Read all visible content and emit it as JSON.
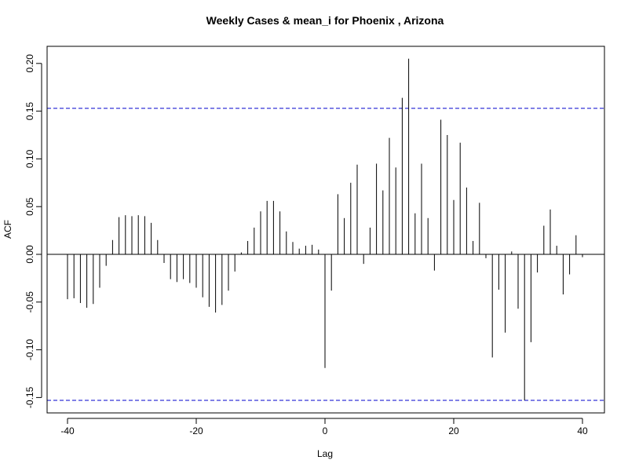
{
  "chart_data": {
    "type": "bar",
    "title": "Weekly Cases & mean_i for Phoenix , Arizona",
    "xlabel": "Lag",
    "ylabel": "ACF",
    "xlim": [
      -40,
      40
    ],
    "ylim": [
      -0.15,
      0.2
    ],
    "xticks": [
      {
        "value": -40,
        "label": "-40"
      },
      {
        "value": -20,
        "label": "-20"
      },
      {
        "value": 0,
        "label": "0"
      },
      {
        "value": 20,
        "label": "20"
      },
      {
        "value": 40,
        "label": "40"
      }
    ],
    "yticks": [
      {
        "value": -0.15,
        "label": "-0.15"
      },
      {
        "value": -0.1,
        "label": "-0.10"
      },
      {
        "value": -0.05,
        "label": "-0.05"
      },
      {
        "value": 0.0,
        "label": "0.00"
      },
      {
        "value": 0.05,
        "label": "0.05"
      },
      {
        "value": 0.1,
        "label": "0.10"
      },
      {
        "value": 0.15,
        "label": "0.15"
      },
      {
        "value": 0.2,
        "label": "0.20"
      }
    ],
    "confidence_bounds": [
      0.153,
      -0.153
    ],
    "colors": {
      "bars": "#000000",
      "bounds": "#0000CC",
      "zero_line": "#000000"
    },
    "grid": false,
    "lags": [
      -40,
      -39,
      -38,
      -37,
      -36,
      -35,
      -34,
      -33,
      -32,
      -31,
      -30,
      -29,
      -28,
      -27,
      -26,
      -25,
      -24,
      -23,
      -22,
      -21,
      -20,
      -19,
      -18,
      -17,
      -16,
      -15,
      -14,
      -13,
      -12,
      -11,
      -10,
      -9,
      -8,
      -7,
      -6,
      -5,
      -4,
      -3,
      -2,
      -1,
      0,
      1,
      2,
      3,
      4,
      5,
      6,
      7,
      8,
      9,
      10,
      11,
      12,
      13,
      14,
      15,
      16,
      17,
      18,
      19,
      20,
      21,
      22,
      23,
      24,
      25,
      26,
      27,
      28,
      29,
      30,
      31,
      32,
      33,
      34,
      35,
      36,
      37,
      38,
      39,
      40
    ],
    "values": [
      -0.047,
      -0.046,
      -0.051,
      -0.056,
      -0.052,
      -0.035,
      -0.012,
      0.015,
      0.039,
      0.041,
      0.04,
      0.041,
      0.04,
      0.033,
      0.015,
      -0.009,
      -0.026,
      -0.029,
      -0.026,
      -0.03,
      -0.035,
      -0.045,
      -0.055,
      -0.061,
      -0.053,
      -0.038,
      -0.018,
      0.002,
      0.014,
      0.028,
      0.045,
      0.056,
      0.056,
      0.045,
      0.024,
      0.013,
      0.006,
      0.009,
      0.01,
      0.005,
      -0.119,
      -0.038,
      0.063,
      0.038,
      0.075,
      0.094,
      -0.01,
      0.028,
      0.095,
      0.067,
      0.122,
      0.091,
      0.164,
      0.205,
      0.043,
      0.095,
      0.038,
      -0.017,
      0.141,
      0.125,
      0.057,
      0.117,
      0.07,
      0.014,
      0.054,
      -0.004,
      -0.108,
      -0.037,
      -0.082,
      0.003,
      -0.057,
      -0.153,
      -0.092,
      -0.019,
      0.03,
      0.047,
      0.009,
      -0.042,
      -0.021,
      0.02,
      -0.003
    ]
  }
}
